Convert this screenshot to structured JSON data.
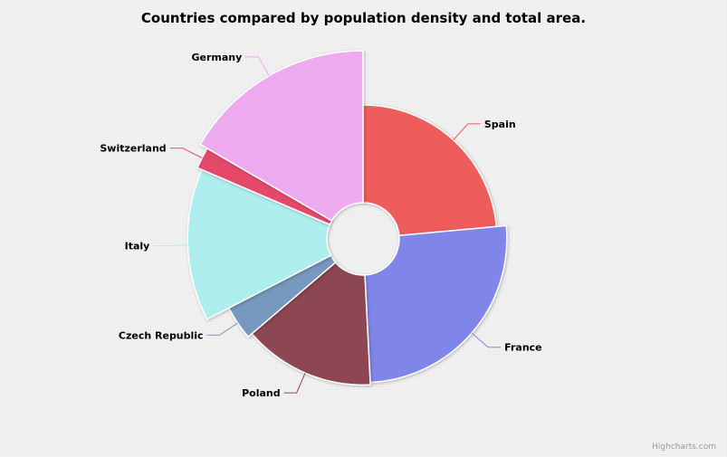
{
  "chart_data": {
    "type": "pie",
    "variant": "variable-radius pie (radius by population density, angle by total area)",
    "title": "Countries compared by population density and total area.",
    "slices": [
      {
        "name": "Spain",
        "area": 505370,
        "density": 92.9,
        "color": "#ee5c5c"
      },
      {
        "name": "France",
        "area": 551500,
        "density": 118.7,
        "color": "#8085e9"
      },
      {
        "name": "Poland",
        "area": 312685,
        "density": 124.6,
        "color": "#8d4653"
      },
      {
        "name": "Czech Republic",
        "area": 78867,
        "density": 137.5,
        "color": "#7798bf"
      },
      {
        "name": "Italy",
        "area": 301340,
        "density": 201.8,
        "color": "#aeeeee"
      },
      {
        "name": "Switzerland",
        "area": 41277,
        "density": 214.5,
        "color": "#e4496b"
      },
      {
        "name": "Germany",
        "area": 357022,
        "density": 235.6,
        "color": "#eeaaee"
      }
    ]
  },
  "credits": "Highcharts.com"
}
